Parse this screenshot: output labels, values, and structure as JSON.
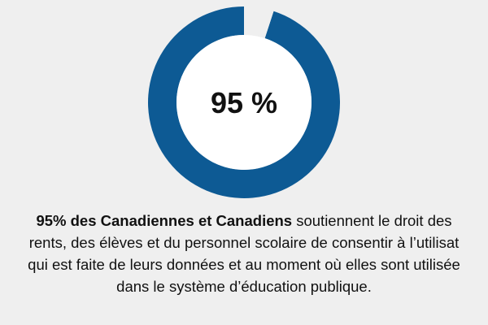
{
  "chart_data": {
    "type": "pie",
    "value_percent": 95,
    "center_label": "95 %",
    "colors": {
      "filled": "#0d5a94",
      "remaining": "#efefef",
      "background": "#efefef"
    }
  },
  "caption": {
    "line1_bold": "95% des Canadiennes et Canadiens",
    "line1_rest": " soutiennent le droit des",
    "line2": "rents, des élèves et du personnel scolaire de consentir à l’utilisat",
    "line3": "qui est faite de leurs données et au moment où elles sont utilisée",
    "line4": "dans le système d’éducation publique."
  }
}
